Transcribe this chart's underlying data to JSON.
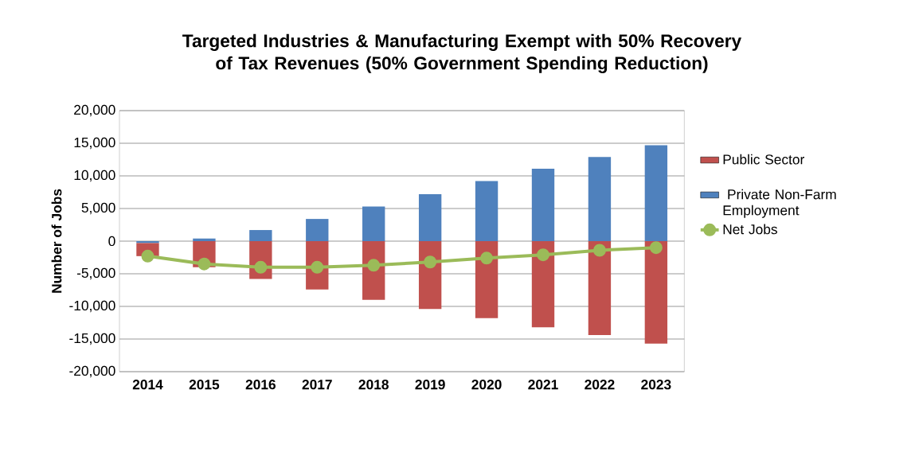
{
  "chart_data": {
    "type": "bar",
    "title": "Targeted Industries & Manufacturing Exempt with 50% Recovery of Tax Revenues (50% Government Spending Reduction)",
    "ylabel": "Number of Jobs",
    "categories": [
      "2014",
      "2015",
      "2016",
      "2017",
      "2018",
      "2019",
      "2020",
      "2021",
      "2022",
      "2023"
    ],
    "stacked": true,
    "series": [
      {
        "name": " Private Non-Farm Employment",
        "color": "#4f81bd",
        "values": [
          -300,
          400,
          1700,
          3400,
          5300,
          7200,
          9200,
          11100,
          12900,
          14700
        ]
      },
      {
        "name": "Public Sector",
        "color": "#c0504d",
        "values": [
          -2000,
          -4000,
          -5800,
          -7400,
          -9000,
          -10400,
          -11800,
          -13200,
          -14400,
          -15700
        ]
      },
      {
        "name": "Net Jobs",
        "type": "line",
        "color": "#9bbb59",
        "values": [
          -2300,
          -3500,
          -4000,
          -4000,
          -3700,
          -3200,
          -2600,
          -2100,
          -1400,
          -1000
        ]
      }
    ],
    "ylim": [
      -20000,
      20000
    ],
    "yticks": [
      {
        "value": -20000,
        "label": "-20,000"
      },
      {
        "value": -15000,
        "label": "-15,000"
      },
      {
        "value": -10000,
        "label": "-10,000"
      },
      {
        "value": -5000,
        "label": "-5,000"
      },
      0,
      {
        "value": 5000,
        "label": "5,000"
      },
      {
        "value": 10000,
        "label": "10,000"
      },
      {
        "value": 15000,
        "label": "15,000"
      },
      {
        "value": 20000,
        "label": "20,000"
      }
    ],
    "grid": "y",
    "legend": "right",
    "marker": "circle",
    "line_style": "solid"
  }
}
